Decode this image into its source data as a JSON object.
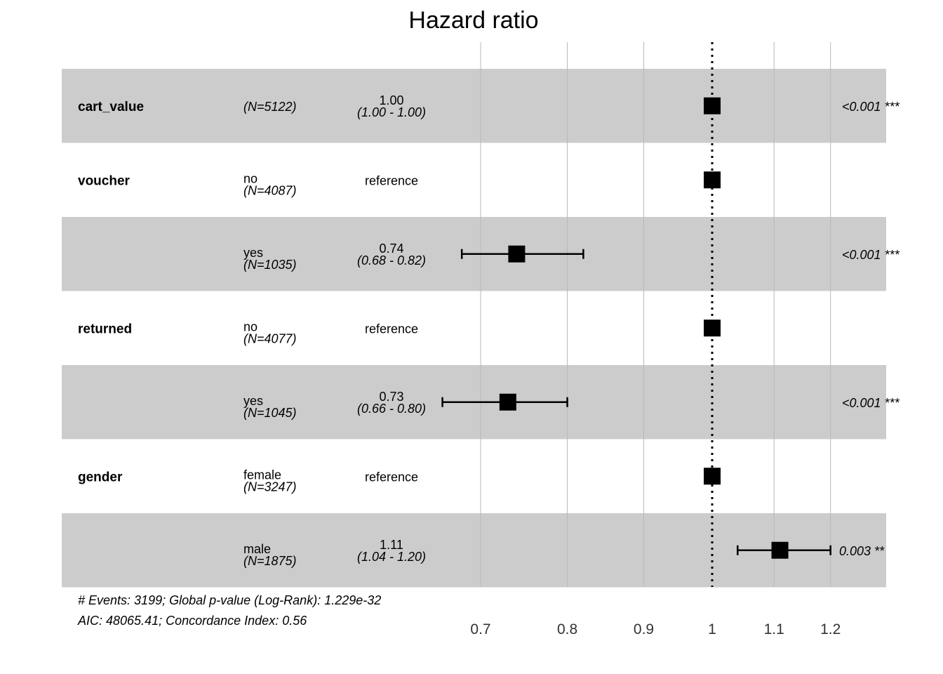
{
  "chart_data": {
    "type": "forest",
    "title": "Hazard ratio",
    "reference_line": 1,
    "x_scale": "log",
    "x_ticks": [
      0.7,
      0.8,
      0.9,
      1,
      1.1,
      1.2
    ],
    "x_tick_labels": [
      "0.7",
      "0.8",
      "0.9",
      "1",
      "1.1",
      "1.2"
    ],
    "grid": true,
    "band_color": "#cccccc",
    "rows": [
      {
        "variable": "cart_value",
        "level": "",
        "n": "(N=5122)",
        "estimate": 1.0,
        "lower": 1.0,
        "upper": 1.0,
        "estimate_label": "1.00",
        "ci_label": "(1.00 - 1.00)",
        "p_label": "<0.001 ***",
        "shaded": true
      },
      {
        "variable": "voucher",
        "level": "no",
        "n": "(N=4087)",
        "estimate": 1.0,
        "lower": 1.0,
        "upper": 1.0,
        "estimate_label": "reference",
        "ci_label": "",
        "p_label": "",
        "shaded": false
      },
      {
        "variable": "",
        "level": "yes",
        "n": "(N=1035)",
        "estimate": 0.74,
        "lower": 0.68,
        "upper": 0.82,
        "estimate_label": "0.74",
        "ci_label": "(0.68 - 0.82)",
        "p_label": "<0.001 ***",
        "shaded": true
      },
      {
        "variable": "returned",
        "level": "no",
        "n": "(N=4077)",
        "estimate": 1.0,
        "lower": 1.0,
        "upper": 1.0,
        "estimate_label": "reference",
        "ci_label": "",
        "p_label": "",
        "shaded": false
      },
      {
        "variable": "",
        "level": "yes",
        "n": "(N=1045)",
        "estimate": 0.73,
        "lower": 0.66,
        "upper": 0.8,
        "estimate_label": "0.73",
        "ci_label": "(0.66 - 0.80)",
        "p_label": "<0.001 ***",
        "shaded": true
      },
      {
        "variable": "gender",
        "level": "female",
        "n": "(N=3247)",
        "estimate": 1.0,
        "lower": 1.0,
        "upper": 1.0,
        "estimate_label": "reference",
        "ci_label": "",
        "p_label": "",
        "shaded": false
      },
      {
        "variable": "",
        "level": "male",
        "n": "(N=1875)",
        "estimate": 1.11,
        "lower": 1.04,
        "upper": 1.2,
        "estimate_label": "1.11",
        "ci_label": "(1.04 - 1.20)",
        "p_label": "0.003 **",
        "shaded": true
      }
    ],
    "annotations": [
      "# Events: 3199; Global p-value (Log-Rank): 1.229e-32",
      "AIC: 48065.41; Concordance Index: 0.56"
    ]
  }
}
